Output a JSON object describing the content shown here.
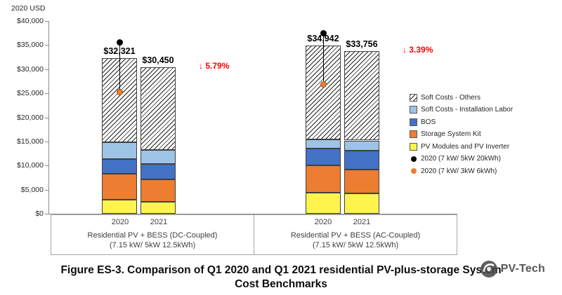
{
  "chart_data": {
    "type": "bar",
    "stacked": true,
    "unit_label": "2020 USD",
    "ylim": [
      0,
      40000
    ],
    "ytick_labels": [
      "$0",
      "$5,000",
      "$10,000",
      "$15,000",
      "$20,000",
      "$25,000",
      "$30,000",
      "$35,000",
      "$40,000"
    ],
    "series": [
      {
        "name": "PV Modules and PV Inverter",
        "color": "#FFF44D",
        "fill": "solid"
      },
      {
        "name": "Storage System Kit",
        "color": "#ED7D31",
        "fill": "solid"
      },
      {
        "name": "BOS",
        "color": "#4472C4",
        "fill": "solid"
      },
      {
        "name": "Soft Costs - Installation Labor",
        "color": "#9DC3E6",
        "fill": "solid"
      },
      {
        "name": "Soft Costs - Others",
        "color": "#FFFFFF",
        "fill": "hatch"
      }
    ],
    "groups": [
      {
        "label_line1": "Residential PV + BESS (DC-Coupled)",
        "label_line2": "(7.15 kW/ 5kW 12.5kWh)",
        "change_label": "↓ 5.79%",
        "bars": [
          {
            "year": "2020",
            "total": 32321,
            "total_label": "$32,321",
            "segments": [
              2900,
              5400,
              3100,
              3400,
              17521
            ]
          },
          {
            "year": "2021",
            "total": 30450,
            "total_label": "$30,450",
            "segments": [
              2500,
              4700,
              3100,
              3000,
              17150
            ]
          }
        ],
        "points": [
          {
            "series": "2020 (7 kW/ 5kW 20kWh)",
            "value": 35600
          },
          {
            "series": "2020 (7 kW/ 3kW 6kWh)",
            "value": 25200
          }
        ]
      },
      {
        "label_line1": "Residential PV + BESS (AC-Coupled)",
        "label_line2": "(7.15 kW/ 5kW 12.5kWh)",
        "change_label": "↓ 3.39%",
        "bars": [
          {
            "year": "2020",
            "total": 34942,
            "total_label": "$34,942",
            "segments": [
              4400,
              5600,
              3600,
              1800,
              19542
            ]
          },
          {
            "year": "2021",
            "total": 33756,
            "total_label": "$33,756",
            "segments": [
              4200,
              5000,
              3900,
              2100,
              18556
            ]
          }
        ],
        "points": [
          {
            "series": "2020 (7 kW/ 5kW 20kWh)",
            "value": 37400
          },
          {
            "series": "2020 (7 kW/ 3kW 6kWh)",
            "value": 26900
          }
        ]
      }
    ],
    "point_series": [
      {
        "name": "2020 (7 kW/ 5kW 20kWh)",
        "color": "#000000"
      },
      {
        "name": "2020 (7 kW/ 3kW 6kWh)",
        "color": "#ED7D31"
      }
    ],
    "legend": [
      {
        "label": "Soft Costs - Others",
        "swatch": "hatch",
        "color": "#FFFFFF"
      },
      {
        "label": "Soft Costs - Installation Labor",
        "swatch": "square",
        "color": "#9DC3E6"
      },
      {
        "label": "BOS",
        "swatch": "square",
        "color": "#4472C4"
      },
      {
        "label": "Storage System Kit",
        "swatch": "square",
        "color": "#ED7D31"
      },
      {
        "label": "PV Modules and PV Inverter",
        "swatch": "square",
        "color": "#FFF44D"
      },
      {
        "label": "2020 (7 kW/ 5kW 20kWh)",
        "swatch": "dot",
        "color": "#000000"
      },
      {
        "label": "2020 (7 kW/ 3kW 6kWh)",
        "swatch": "dot",
        "color": "#ED7D31"
      }
    ],
    "change_color": "#FF0000"
  },
  "title": {
    "line1": "Figure ES-3. Comparison of Q1 2020 and Q1 2021 residential PV-plus-storage System",
    "line2": "Cost Benchmarks"
  },
  "watermark": {
    "text": "PV-Tech"
  }
}
